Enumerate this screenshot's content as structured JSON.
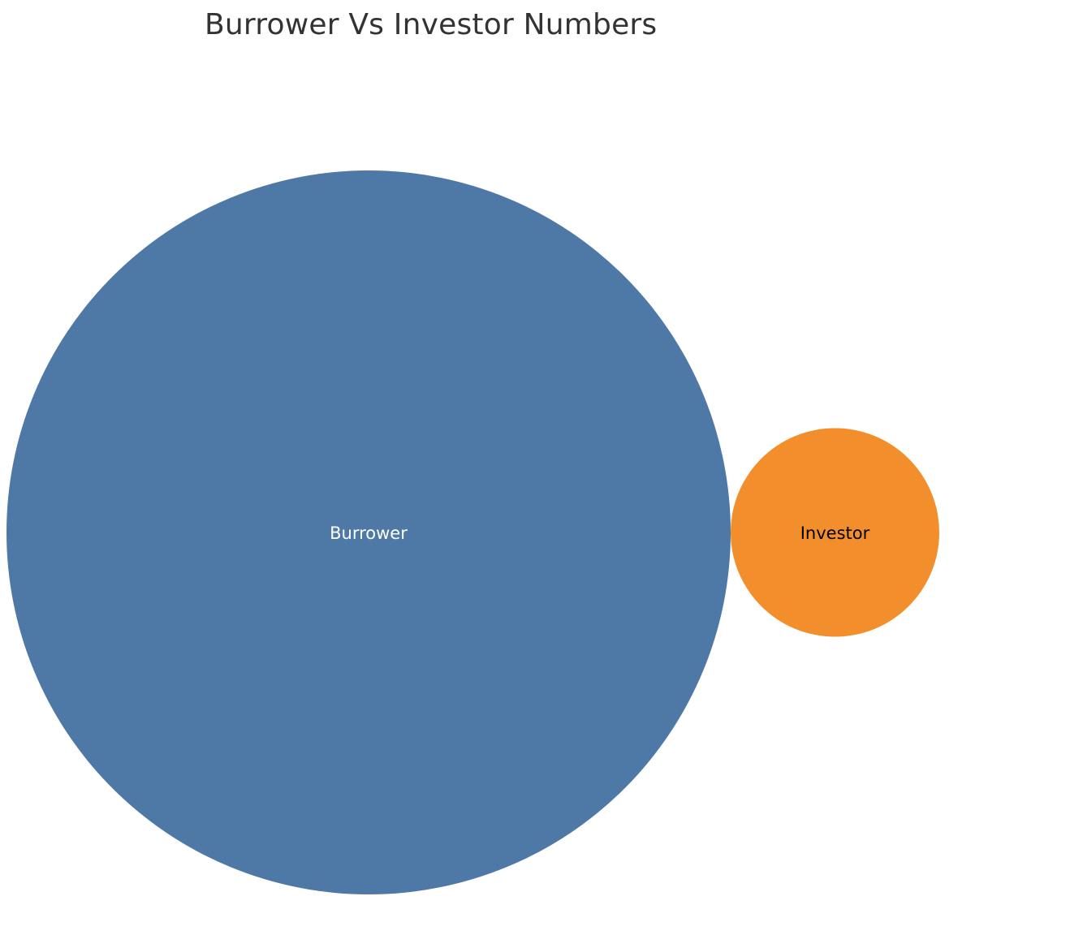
{
  "chart_data": {
    "type": "bubble",
    "title": "Burrower Vs Investor Numbers",
    "categories": [
      "Burrower",
      "Investor"
    ],
    "values": [
      100,
      8.3
    ],
    "colors": [
      "#4e79a7",
      "#f28e2b"
    ],
    "label_colors": [
      "#ffffff",
      "#000000"
    ],
    "legend": "none",
    "grid": false
  }
}
